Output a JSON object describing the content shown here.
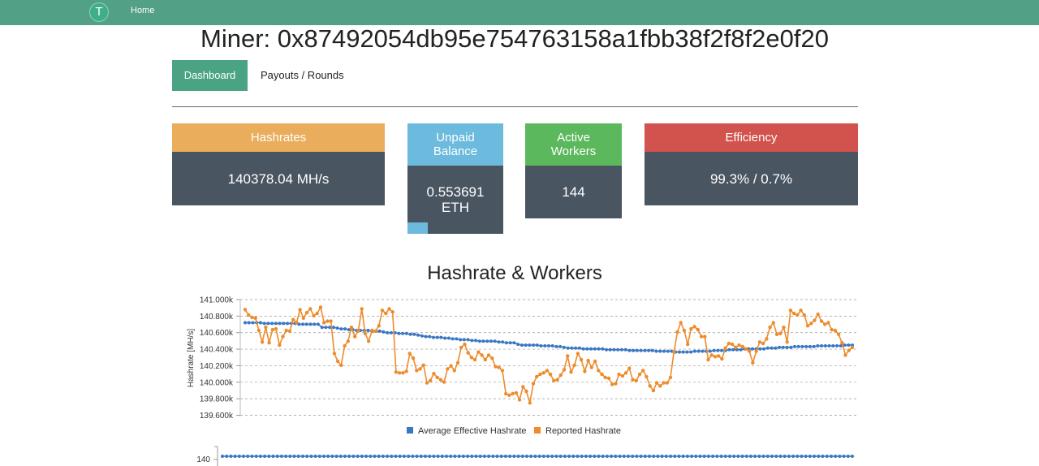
{
  "nav": {
    "logo_letter": "T",
    "home_label": "Home"
  },
  "page_title": "Miner: 0x87492054db95e754763158a1fbb38f2f8f2e0f20",
  "tabs": {
    "dashboard": "Dashboard",
    "payouts": "Payouts / Rounds"
  },
  "cards": {
    "hashrates": {
      "label": "Hashrates",
      "value": "140378.04 MH/s",
      "color": "#e9ad5c"
    },
    "unpaid": {
      "label_line1": "Unpaid",
      "label_line2": "Balance",
      "value_line1": "0.553691",
      "value_line2": "ETH",
      "color": "#6cbadd"
    },
    "workers": {
      "label_line1": "Active",
      "label_line2": "Workers",
      "value": "144",
      "color": "#5cb85c"
    },
    "efficiency": {
      "label": "Efficiency",
      "value": "99.3% / 0.7%",
      "color": "#d2524d"
    }
  },
  "chart_title": "Hashrate & Workers",
  "chart_data": {
    "type": "line",
    "ylabel": "Hashrate [MH/s]",
    "ylim": [
      139500,
      141000
    ],
    "yticks": [
      "141.000k",
      "140.800k",
      "140.600k",
      "140.400k",
      "140.200k",
      "140.000k",
      "139.800k",
      "139.600k"
    ],
    "grid": true,
    "legend_position": "bottom",
    "series": [
      {
        "name": "Average Effective Hashrate",
        "color": "#3a78c3",
        "values": [
          140700,
          140700,
          140700,
          140700,
          140700,
          140690,
          140690,
          140690,
          140690,
          140690,
          140690,
          140690,
          140690,
          140690,
          140680,
          140680,
          140680,
          140680,
          140680,
          140680,
          140640,
          140640,
          140640,
          140640,
          140630,
          140620,
          140620,
          140610,
          140610,
          140600,
          140600,
          140600,
          140600,
          140590,
          140590,
          140590,
          140580,
          140570,
          140570,
          140570,
          140560,
          140560,
          140560,
          140550,
          140550,
          140540,
          140530,
          140520,
          140520,
          140510,
          140510,
          140510,
          140500,
          140500,
          140490,
          140490,
          140480,
          140480,
          140480,
          140470,
          140470,
          140460,
          140460,
          140460,
          140460,
          140460,
          140450,
          140450,
          140440,
          140440,
          140440,
          140420,
          140410,
          140410,
          140410,
          140410,
          140410,
          140400,
          140400,
          140400,
          140400,
          140390,
          140390,
          140380,
          140370,
          140370,
          140370,
          140370,
          140360,
          140360,
          140360,
          140360,
          140360,
          140360,
          140350,
          140350,
          140350,
          140350,
          140350,
          140350,
          140340,
          140340,
          140340,
          140340,
          140340,
          140340,
          140340,
          140330,
          140330,
          140330,
          140330,
          140330,
          140320,
          140320,
          140320,
          140320,
          140320,
          140330,
          140330,
          140330,
          140330,
          140330,
          140340,
          140340,
          140340,
          140340,
          140350,
          140350,
          140350,
          140350,
          140360,
          140360,
          140360,
          140360,
          140360,
          140360,
          140370,
          140370,
          140370,
          140380,
          140380,
          140380,
          140380,
          140390,
          140390,
          140390,
          140390,
          140390,
          140390,
          140400,
          140400,
          140400,
          140400,
          140400,
          140400,
          140400,
          140410,
          140410,
          140410
        ]
      },
      {
        "name": "Reported Hashrate",
        "color": "#ee8c2c",
        "values": [
          140870,
          140800,
          140770,
          140760,
          140600,
          140450,
          140640,
          140440,
          140610,
          140620,
          140410,
          140520,
          140600,
          140590,
          140740,
          140700,
          140870,
          140760,
          140830,
          140880,
          140790,
          140820,
          140900,
          140700,
          140720,
          140720,
          140300,
          140200,
          140150,
          140400,
          140460,
          140640,
          140520,
          140600,
          140880,
          140560,
          140460,
          140600,
          140590,
          140660,
          140860,
          140820,
          140880,
          140840,
          140060,
          140050,
          140050,
          140070,
          140300,
          140240,
          140080,
          140100,
          140150,
          139920,
          139950,
          140040,
          139990,
          139960,
          139930,
          140100,
          140140,
          140080,
          140180,
          140380,
          140420,
          140310,
          140250,
          140220,
          140320,
          140280,
          140220,
          140280,
          140240,
          140130,
          140120,
          140080,
          139780,
          139760,
          139780,
          139790,
          139700,
          139870,
          139810,
          139660,
          139910,
          140000,
          140030,
          140050,
          140080,
          140030,
          139950,
          139960,
          140020,
          140090,
          140270,
          140060,
          140150,
          140300,
          140220,
          140070,
          140210,
          140120,
          140200,
          140080,
          140030,
          139990,
          139980,
          139900,
          139910,
          140030,
          140010,
          140050,
          140110,
          139960,
          139950,
          140030,
          140080,
          140000,
          139880,
          139820,
          139920,
          139880,
          139920,
          139920,
          139990,
          140320,
          140580,
          140700,
          140600,
          140420,
          140620,
          140650,
          140610,
          140520,
          140520,
          140220,
          140280,
          140260,
          140270,
          140230,
          140370,
          140430,
          140420,
          140380,
          140410,
          140390,
          140360,
          140330,
          140180,
          140330,
          140450,
          140430,
          140490,
          140640,
          140700,
          140550,
          140560,
          140640,
          140450,
          140860,
          140820,
          140800,
          140860,
          140800,
          140660,
          140690,
          140730,
          140810,
          140720,
          140680,
          140700,
          140610,
          140600,
          140550,
          140440,
          140280,
          140340,
          140380
        ]
      }
    ]
  },
  "workers_axis": {
    "tick": "140"
  }
}
